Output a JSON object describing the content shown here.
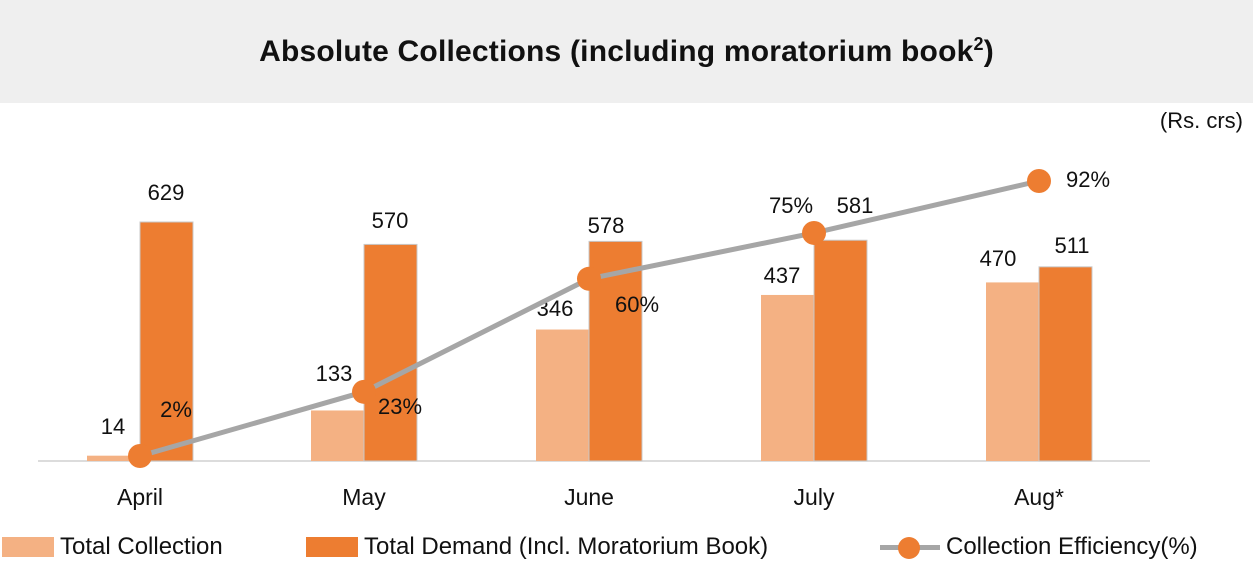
{
  "header": {
    "title": "Absolute Collections (including moratorium book",
    "title_superscript": "2",
    "title_close": ")",
    "units": "(Rs. crs)"
  },
  "colors": {
    "total_collection": "#f4b183",
    "total_demand": "#ed7d31",
    "efficiency_line": "#a6a6a6",
    "efficiency_marker": "#ed7d31"
  },
  "chart_data": {
    "type": "bar",
    "title": "Absolute Collections (including moratorium book2)",
    "categories": [
      "April",
      "May",
      "June",
      "July",
      "Aug*"
    ],
    "series": [
      {
        "name": "Total Collection",
        "type": "bar",
        "values": [
          14,
          133,
          346,
          437,
          470
        ]
      },
      {
        "name": "Total Demand (Incl. Moratorium Book)",
        "type": "bar",
        "values": [
          629,
          570,
          578,
          581,
          511
        ]
      },
      {
        "name": "Collection Efficiency(%)",
        "type": "line",
        "values": [
          2,
          23,
          60,
          75,
          92
        ],
        "labels": [
          "2%",
          "23%",
          "60%",
          "75%",
          "92%"
        ]
      }
    ],
    "ylim": [
      0,
      629
    ],
    "grid": false,
    "legend_position": "bottom"
  },
  "legend": {
    "items": [
      {
        "label": "Total Collection"
      },
      {
        "label": "Total Demand (Incl. Moratorium Book)"
      },
      {
        "label": "Collection Efficiency(%)"
      }
    ]
  }
}
